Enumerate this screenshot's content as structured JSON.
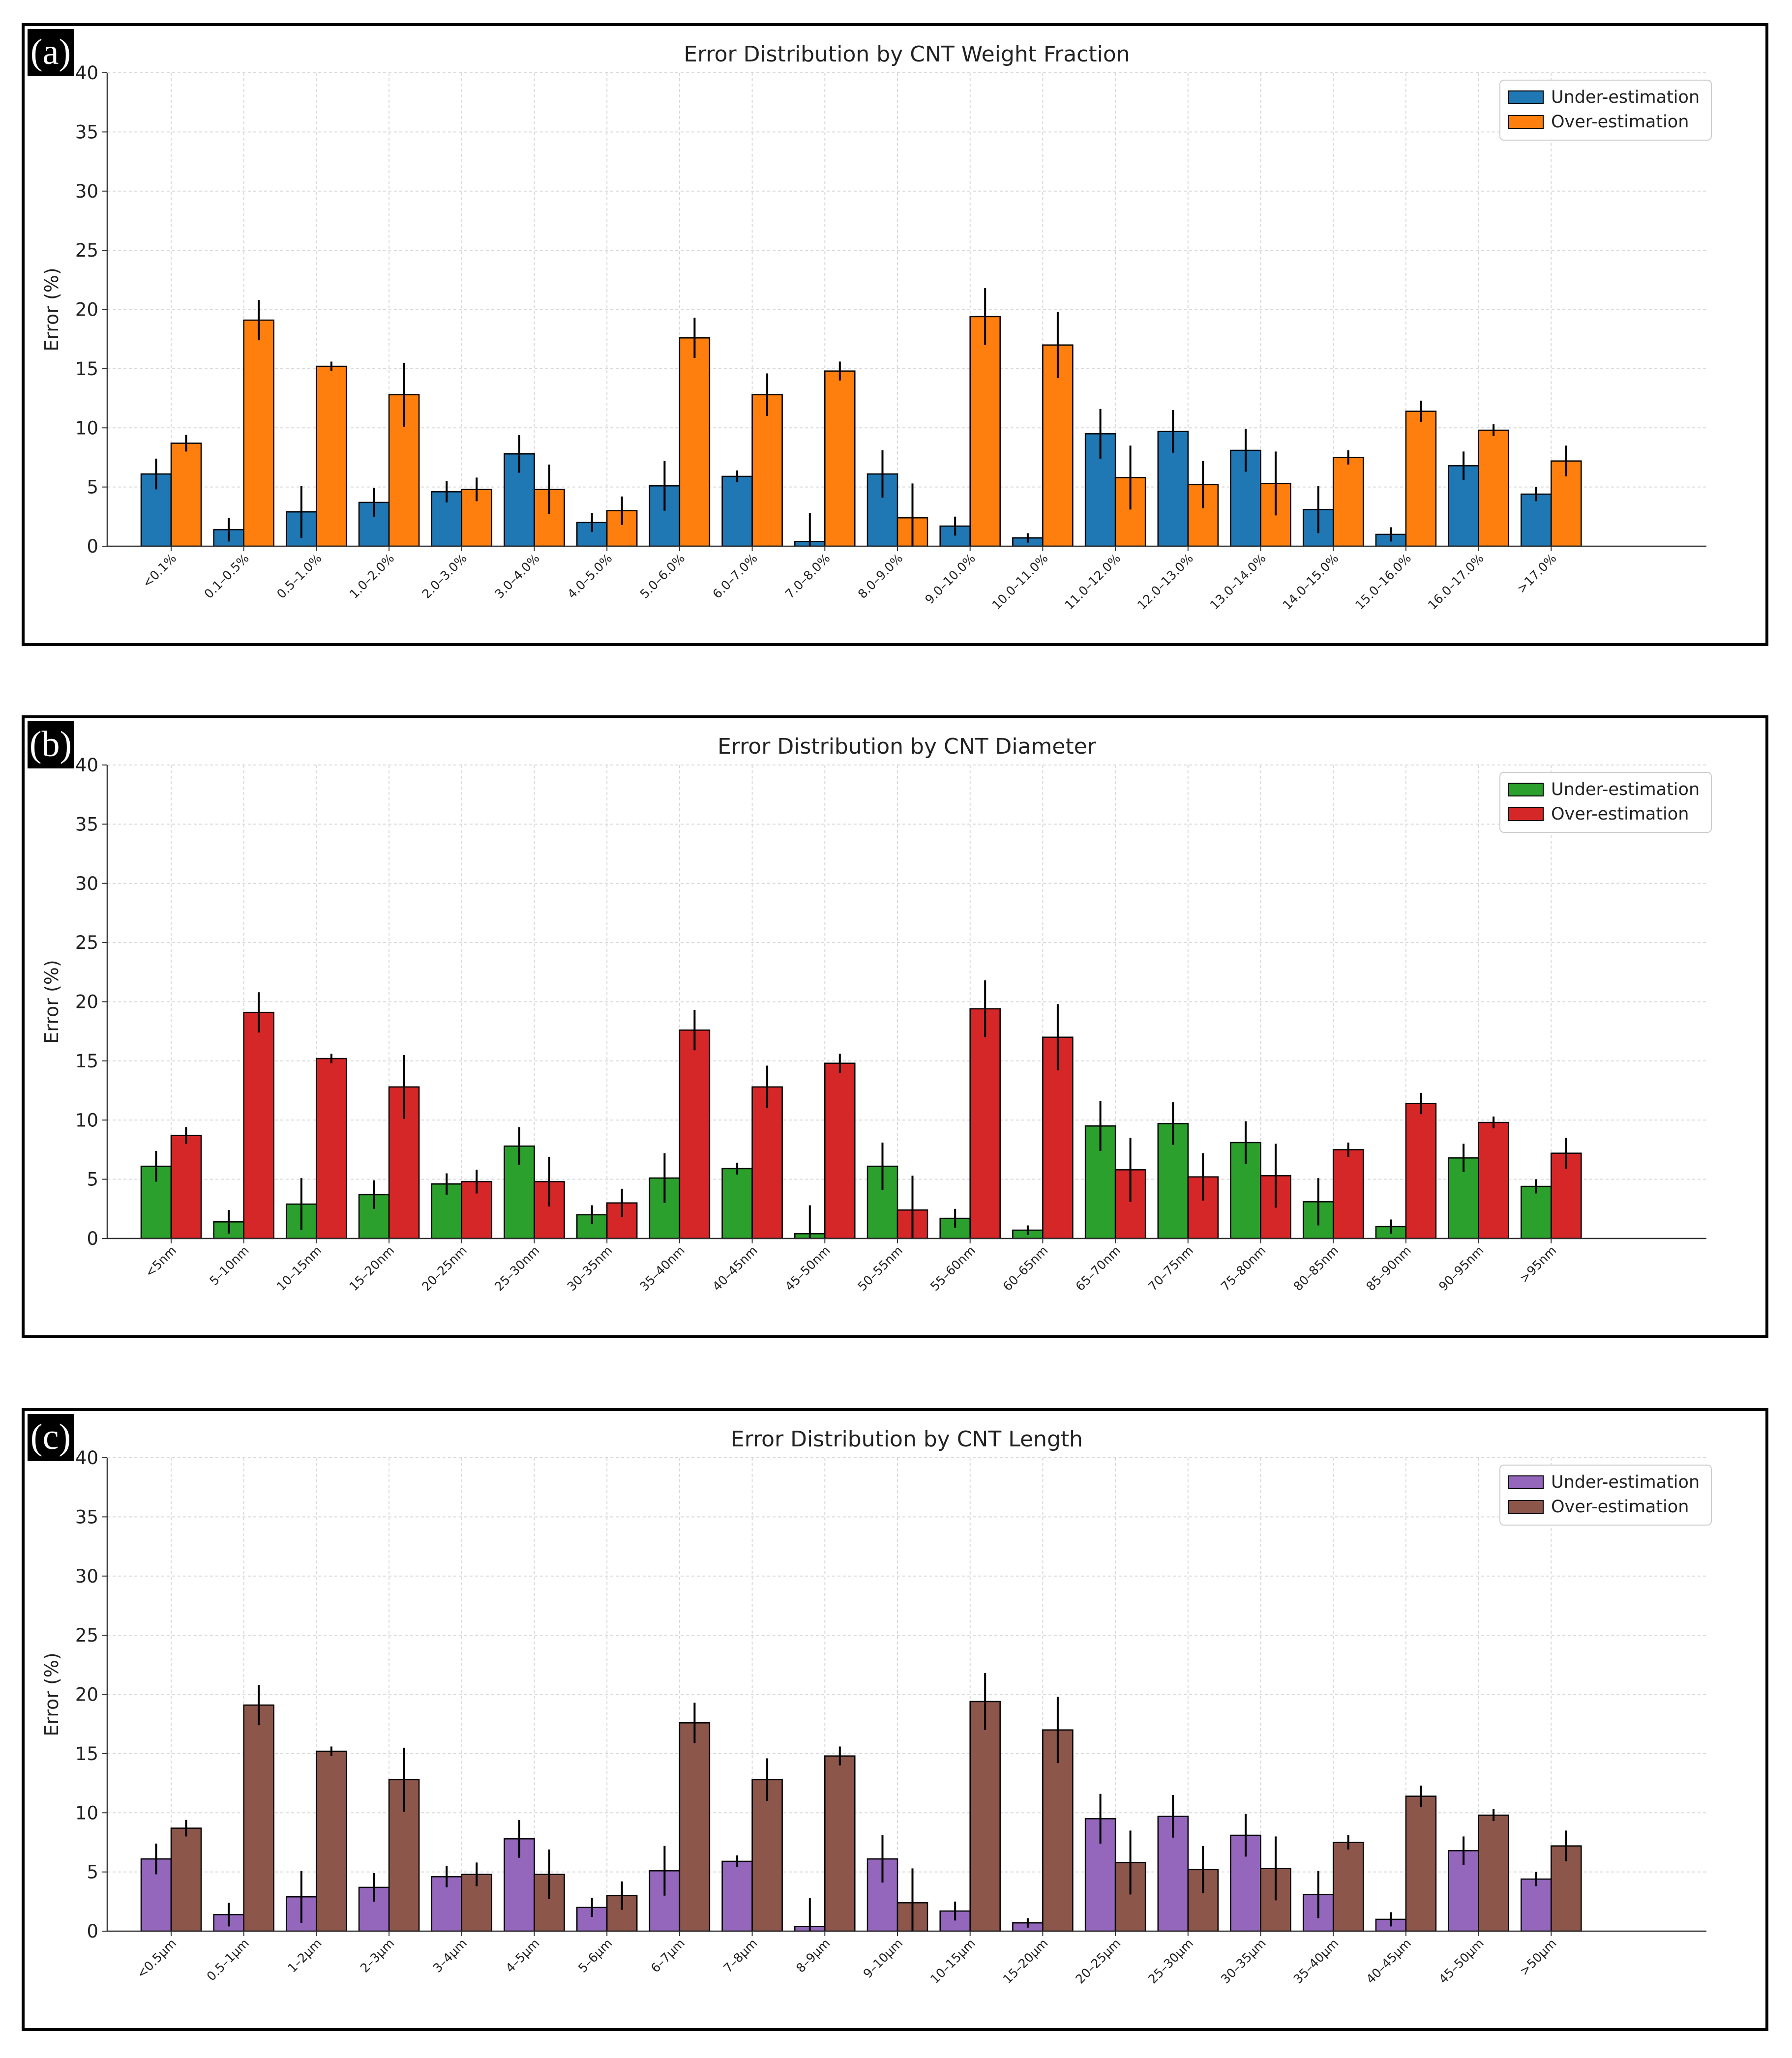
{
  "figure": {
    "panels": [
      {
        "tag": "(a)",
        "chart_index": 0
      },
      {
        "tag": "(b)",
        "chart_index": 1
      },
      {
        "tag": "(c)",
        "chart_index": 2
      }
    ]
  },
  "chart_data": [
    {
      "type": "bar",
      "title": "Error Distribution by CNT Weight Fraction",
      "xlabel": "",
      "ylabel": "Error (%)",
      "ylim": [
        0,
        40
      ],
      "yticks": [
        0,
        5,
        10,
        15,
        20,
        25,
        30,
        35,
        40
      ],
      "grid": true,
      "legend_position": "top-right",
      "categories": [
        "<0.1%",
        "0.1–0.5%",
        "0.5–1.0%",
        "1.0–2.0%",
        "2.0–3.0%",
        "3.0–4.0%",
        "4.0–5.0%",
        "5.0–6.0%",
        "6.0–7.0%",
        "7.0–8.0%",
        "8.0–9.0%",
        "9.0–10.0%",
        "10.0–11.0%",
        "11.0–12.0%",
        "12.0–13.0%",
        "13.0–14.0%",
        "14.0–15.0%",
        "15.0–16.0%",
        "16.0–17.0%",
        ">17.0%"
      ],
      "series": [
        {
          "name": "Under-estimation",
          "color": "#1f77b4",
          "values": [
            6.1,
            1.4,
            2.9,
            3.7,
            4.6,
            7.8,
            2.0,
            5.1,
            5.9,
            0.4,
            6.1,
            1.7,
            0.7,
            9.5,
            9.7,
            8.1,
            3.1,
            1.0,
            6.8,
            4.4
          ],
          "errors": [
            1.3,
            1.0,
            2.2,
            1.2,
            0.9,
            1.6,
            0.8,
            2.1,
            0.5,
            2.4,
            2.0,
            0.8,
            0.4,
            2.1,
            1.8,
            1.8,
            2.0,
            0.6,
            1.2,
            0.6
          ]
        },
        {
          "name": "Over-estimation",
          "color": "#ff7f0e",
          "values": [
            8.7,
            19.1,
            15.2,
            12.8,
            4.8,
            4.8,
            3.0,
            17.6,
            12.8,
            14.8,
            2.4,
            19.4,
            17.0,
            5.8,
            5.2,
            5.3,
            7.5,
            11.4,
            9.8,
            7.2
          ],
          "errors": [
            0.7,
            1.7,
            0.4,
            2.7,
            1.0,
            2.1,
            1.2,
            1.7,
            1.8,
            0.8,
            2.9,
            2.4,
            2.8,
            2.7,
            2.0,
            2.7,
            0.6,
            0.9,
            0.5,
            1.3
          ]
        }
      ]
    },
    {
      "type": "bar",
      "title": "Error Distribution by CNT Diameter",
      "xlabel": "",
      "ylabel": "Error (%)",
      "ylim": [
        0,
        40
      ],
      "yticks": [
        0,
        5,
        10,
        15,
        20,
        25,
        30,
        35,
        40
      ],
      "grid": true,
      "legend_position": "top-right",
      "categories": [
        "<5nm",
        "5–10nm",
        "10–15nm",
        "15–20nm",
        "20–25nm",
        "25–30nm",
        "30–35nm",
        "35–40nm",
        "40–45nm",
        "45–50nm",
        "50–55nm",
        "55–60nm",
        "60–65nm",
        "65–70nm",
        "70–75nm",
        "75–80nm",
        "80–85nm",
        "85–90nm",
        "90–95nm",
        ">95nm"
      ],
      "series": [
        {
          "name": "Under-estimation",
          "color": "#2ca02c",
          "values": [
            6.1,
            1.4,
            2.9,
            3.7,
            4.6,
            7.8,
            2.0,
            5.1,
            5.9,
            0.4,
            6.1,
            1.7,
            0.7,
            9.5,
            9.7,
            8.1,
            3.1,
            1.0,
            6.8,
            4.4
          ],
          "errors": [
            1.3,
            1.0,
            2.2,
            1.2,
            0.9,
            1.6,
            0.8,
            2.1,
            0.5,
            2.4,
            2.0,
            0.8,
            0.4,
            2.1,
            1.8,
            1.8,
            2.0,
            0.6,
            1.2,
            0.6
          ]
        },
        {
          "name": "Over-estimation",
          "color": "#d62728",
          "values": [
            8.7,
            19.1,
            15.2,
            12.8,
            4.8,
            4.8,
            3.0,
            17.6,
            12.8,
            14.8,
            2.4,
            19.4,
            17.0,
            5.8,
            5.2,
            5.3,
            7.5,
            11.4,
            9.8,
            7.2
          ],
          "errors": [
            0.7,
            1.7,
            0.4,
            2.7,
            1.0,
            2.1,
            1.2,
            1.7,
            1.8,
            0.8,
            2.9,
            2.4,
            2.8,
            2.7,
            2.0,
            2.7,
            0.6,
            0.9,
            0.5,
            1.3
          ]
        }
      ]
    },
    {
      "type": "bar",
      "title": "Error Distribution by CNT Length",
      "xlabel": "",
      "ylabel": "Error (%)",
      "ylim": [
        0,
        40
      ],
      "yticks": [
        0,
        5,
        10,
        15,
        20,
        25,
        30,
        35,
        40
      ],
      "grid": true,
      "legend_position": "top-right",
      "categories": [
        "<0.5μm",
        "0.5–1μm",
        "1–2μm",
        "2–3μm",
        "3–4μm",
        "4–5μm",
        "5–6μm",
        "6–7μm",
        "7–8μm",
        "8–9μm",
        "9–10μm",
        "10–15μm",
        "15–20μm",
        "20–25μm",
        "25–30μm",
        "30–35μm",
        "35–40μm",
        "40–45μm",
        "45–50μm",
        ">50μm"
      ],
      "series": [
        {
          "name": "Under-estimation",
          "color": "#9467bd",
          "values": [
            6.1,
            1.4,
            2.9,
            3.7,
            4.6,
            7.8,
            2.0,
            5.1,
            5.9,
            0.4,
            6.1,
            1.7,
            0.7,
            9.5,
            9.7,
            8.1,
            3.1,
            1.0,
            6.8,
            4.4
          ],
          "errors": [
            1.3,
            1.0,
            2.2,
            1.2,
            0.9,
            1.6,
            0.8,
            2.1,
            0.5,
            2.4,
            2.0,
            0.8,
            0.4,
            2.1,
            1.8,
            1.8,
            2.0,
            0.6,
            1.2,
            0.6
          ]
        },
        {
          "name": "Over-estimation",
          "color": "#8c564b",
          "values": [
            8.7,
            19.1,
            15.2,
            12.8,
            4.8,
            4.8,
            3.0,
            17.6,
            12.8,
            14.8,
            2.4,
            19.4,
            17.0,
            5.8,
            5.2,
            5.3,
            7.5,
            11.4,
            9.8,
            7.2
          ],
          "errors": [
            0.7,
            1.7,
            0.4,
            2.7,
            1.0,
            2.1,
            1.2,
            1.7,
            1.8,
            0.8,
            2.9,
            2.4,
            2.8,
            2.7,
            2.0,
            2.7,
            0.6,
            0.9,
            0.5,
            1.3
          ]
        }
      ]
    }
  ]
}
